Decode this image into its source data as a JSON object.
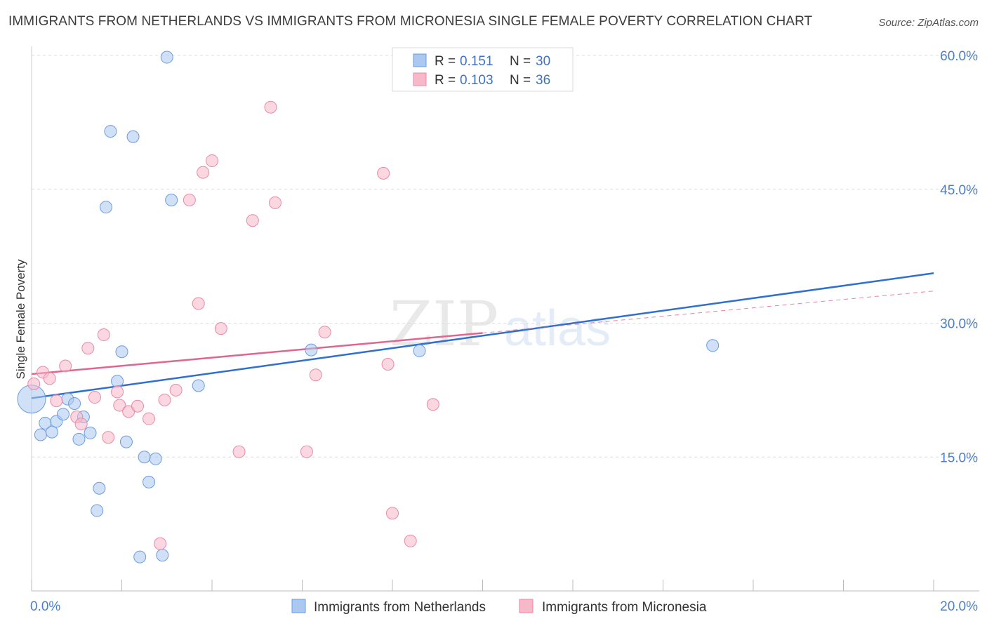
{
  "header": {
    "title": "IMMIGRANTS FROM NETHERLANDS VS IMMIGRANTS FROM MICRONESIA SINGLE FEMALE POVERTY CORRELATION CHART",
    "source": "Source: ZipAtlas.com"
  },
  "watermark": {
    "zip": "ZIP",
    "atlas": "atlas"
  },
  "legend_box": {
    "r_label": "R =",
    "n_label": "N =",
    "netherlands": {
      "r": "0.151",
      "n": "30"
    },
    "micronesia": {
      "r": "0.103",
      "n": "36"
    }
  },
  "colors": {
    "netherlands_fill": "#aac8f0",
    "netherlands_stroke": "#6b9be0",
    "netherlands_line": "#2f6fd0",
    "micronesia_fill": "#f7b8c9",
    "micronesia_stroke": "#e88aa6",
    "micronesia_line": "#e0668f",
    "tick_label": "#4a7fd0",
    "grid": "#dddddd"
  },
  "chart_data": {
    "type": "scatter",
    "title": "IMMIGRANTS FROM NETHERLANDS VS IMMIGRANTS FROM MICRONESIA SINGLE FEMALE POVERTY CORRELATION CHART",
    "xlabel": "",
    "ylabel": "Single Female Poverty",
    "xlim": [
      0,
      20
    ],
    "ylim": [
      0,
      60
    ],
    "x_tick_labels": [
      {
        "value": 0,
        "label": "0.0%"
      },
      {
        "value": 20,
        "label": "20.0%"
      }
    ],
    "y_tick_labels": [
      {
        "value": 15,
        "label": "15.0%"
      },
      {
        "value": 30,
        "label": "30.0%"
      },
      {
        "value": 45,
        "label": "45.0%"
      },
      {
        "value": 60,
        "label": "60.0%"
      }
    ],
    "grid": true,
    "legend_position": "bottom-center",
    "series": [
      {
        "name": "Immigrants from Netherlands",
        "color": "#aac8f0",
        "r": 0.151,
        "n": 30,
        "trend": {
          "x": [
            0,
            20
          ],
          "y": [
            21.6,
            35.6
          ],
          "style": "solid"
        },
        "points": [
          {
            "x": 0.0,
            "y": 21.5,
            "size": "large"
          },
          {
            "x": 0.2,
            "y": 17.5
          },
          {
            "x": 0.3,
            "y": 18.8
          },
          {
            "x": 0.45,
            "y": 17.8
          },
          {
            "x": 0.55,
            "y": 19.0
          },
          {
            "x": 0.7,
            "y": 19.8
          },
          {
            "x": 0.8,
            "y": 21.5
          },
          {
            "x": 0.95,
            "y": 21.0
          },
          {
            "x": 1.05,
            "y": 17.0
          },
          {
            "x": 1.15,
            "y": 19.5
          },
          {
            "x": 1.3,
            "y": 17.7
          },
          {
            "x": 1.45,
            "y": 9.0
          },
          {
            "x": 1.5,
            "y": 11.5
          },
          {
            "x": 1.65,
            "y": 43.0
          },
          {
            "x": 1.75,
            "y": 51.5
          },
          {
            "x": 1.9,
            "y": 23.5
          },
          {
            "x": 2.0,
            "y": 26.8
          },
          {
            "x": 2.1,
            "y": 16.7
          },
          {
            "x": 2.25,
            "y": 50.9
          },
          {
            "x": 2.4,
            "y": 3.8
          },
          {
            "x": 2.5,
            "y": 15.0
          },
          {
            "x": 2.6,
            "y": 12.2
          },
          {
            "x": 2.75,
            "y": 14.8
          },
          {
            "x": 2.9,
            "y": 4.0
          },
          {
            "x": 3.0,
            "y": 59.8
          },
          {
            "x": 3.1,
            "y": 43.8
          },
          {
            "x": 3.7,
            "y": 23.0
          },
          {
            "x": 6.2,
            "y": 27.0
          },
          {
            "x": 8.6,
            "y": 26.9
          },
          {
            "x": 15.1,
            "y": 27.5
          }
        ]
      },
      {
        "name": "Immigrants from Micronesia",
        "color": "#f7b8c9",
        "r": 0.103,
        "n": 36,
        "trend": {
          "x": [
            0,
            10
          ],
          "y": [
            24.3,
            28.9
          ],
          "style": "solid"
        },
        "trend_extension": {
          "x": [
            10,
            20
          ],
          "y": [
            28.9,
            33.6
          ],
          "style": "dashed"
        },
        "points": [
          {
            "x": 0.05,
            "y": 23.2
          },
          {
            "x": 0.25,
            "y": 24.5
          },
          {
            "x": 0.4,
            "y": 23.8
          },
          {
            "x": 0.55,
            "y": 21.3
          },
          {
            "x": 0.75,
            "y": 25.2
          },
          {
            "x": 1.0,
            "y": 19.5
          },
          {
            "x": 1.1,
            "y": 18.7
          },
          {
            "x": 1.25,
            "y": 27.2
          },
          {
            "x": 1.4,
            "y": 21.7
          },
          {
            "x": 1.6,
            "y": 28.7
          },
          {
            "x": 1.7,
            "y": 17.2
          },
          {
            "x": 1.9,
            "y": 22.3
          },
          {
            "x": 1.95,
            "y": 20.8
          },
          {
            "x": 2.15,
            "y": 20.1
          },
          {
            "x": 2.35,
            "y": 20.7
          },
          {
            "x": 2.6,
            "y": 19.3
          },
          {
            "x": 2.85,
            "y": 5.3
          },
          {
            "x": 2.95,
            "y": 21.4
          },
          {
            "x": 3.2,
            "y": 22.5
          },
          {
            "x": 3.5,
            "y": 43.8
          },
          {
            "x": 3.7,
            "y": 32.2
          },
          {
            "x": 3.8,
            "y": 46.9
          },
          {
            "x": 4.0,
            "y": 48.2
          },
          {
            "x": 4.2,
            "y": 29.4
          },
          {
            "x": 4.6,
            "y": 15.6
          },
          {
            "x": 4.9,
            "y": 41.5
          },
          {
            "x": 5.3,
            "y": 54.2
          },
          {
            "x": 5.4,
            "y": 43.5
          },
          {
            "x": 6.1,
            "y": 15.6
          },
          {
            "x": 6.3,
            "y": 24.2
          },
          {
            "x": 6.5,
            "y": 29.0
          },
          {
            "x": 7.8,
            "y": 46.8
          },
          {
            "x": 7.9,
            "y": 25.4
          },
          {
            "x": 8.0,
            "y": 8.7
          },
          {
            "x": 8.4,
            "y": 5.6
          },
          {
            "x": 8.9,
            "y": 20.9
          }
        ]
      }
    ]
  },
  "bottom_legend": {
    "netherlands_label": "Immigrants from Netherlands",
    "micronesia_label": "Immigrants from Micronesia"
  }
}
